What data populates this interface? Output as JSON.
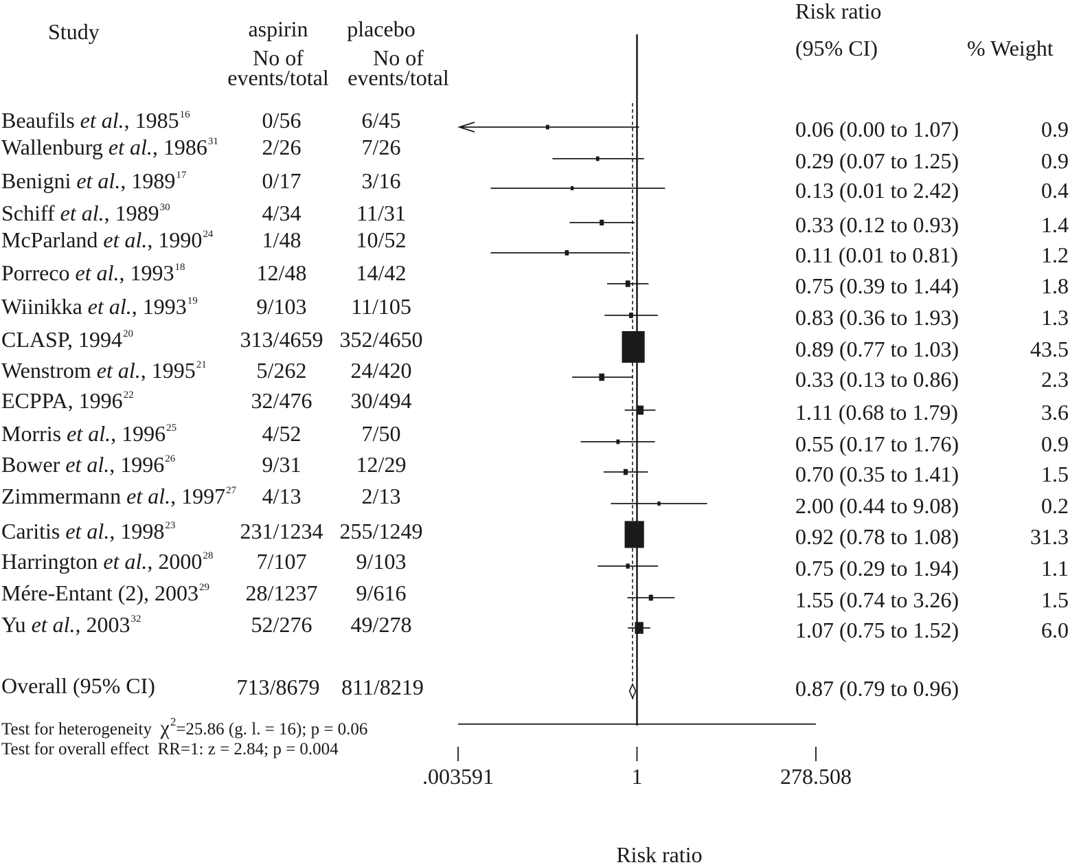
{
  "chart_data": {
    "type": "forest",
    "header": {
      "study": "Study",
      "aspirin": "aspirin",
      "placebo": "placebo",
      "no_of": "No of",
      "events_total": "events/total",
      "risk_ratio": "Risk ratio",
      "ci": "(95% CI)",
      "weight": "% Weight"
    },
    "studies": [
      {
        "name": "Beaufils",
        "etal": true,
        "year": "1985",
        "ref": "16",
        "aspirin": "0/56",
        "placebo": "6/45",
        "rr_text": "0.06 (0.00 to 1.07)",
        "weight_text": "0.9",
        "rr": 0.06,
        "lo": 0.0036,
        "hi": 1.07,
        "weight": 0.9,
        "arrow_left": true
      },
      {
        "name": "Wallenburg",
        "etal": true,
        "year": "1986",
        "ref": "31",
        "aspirin": "2/26",
        "placebo": "7/26",
        "rr_text": "0.29 (0.07 to 1.25)",
        "weight_text": "0.9",
        "rr": 0.29,
        "lo": 0.07,
        "hi": 1.25,
        "weight": 0.9
      },
      {
        "name": "Benigni",
        "etal": true,
        "year": "1989",
        "ref": "17",
        "aspirin": "0/17",
        "placebo": "3/16",
        "rr_text": "0.13 (0.01 to 2.42)",
        "weight_text": "0.4",
        "rr": 0.13,
        "lo": 0.01,
        "hi": 2.42,
        "weight": 0.4
      },
      {
        "name": "Schiff",
        "etal": true,
        "year": "1989",
        "ref": "30",
        "aspirin": "4/34",
        "placebo": "11/31",
        "rr_text": "0.33 (0.12 to 0.93)",
        "weight_text": "1.4",
        "rr": 0.33,
        "lo": 0.12,
        "hi": 0.93,
        "weight": 1.4
      },
      {
        "name": "McParland",
        "etal": true,
        "year": "1990",
        "ref": "24",
        "aspirin": "1/48",
        "placebo": "10/52",
        "rr_text": "0.11 (0.01 to 0.81)",
        "weight_text": "1.2",
        "rr": 0.11,
        "lo": 0.01,
        "hi": 0.81,
        "weight": 1.2
      },
      {
        "name": "Porreco",
        "etal": true,
        "year": "1993",
        "ref": "18",
        "aspirin": "12/48",
        "placebo": "14/42",
        "rr_text": "0.75 (0.39 to 1.44)",
        "weight_text": "1.8",
        "rr": 0.75,
        "lo": 0.39,
        "hi": 1.44,
        "weight": 1.8
      },
      {
        "name": "Wiinikka",
        "etal": true,
        "year": "1993",
        "ref": "19",
        "aspirin": "9/103",
        "placebo": "11/105",
        "rr_text": "0.83 (0.36 to 1.93)",
        "weight_text": "1.3",
        "rr": 0.83,
        "lo": 0.36,
        "hi": 1.93,
        "weight": 1.3
      },
      {
        "name": "CLASP",
        "etal": false,
        "year": "1994",
        "ref": "20",
        "aspirin": "313/4659",
        "placebo": "352/4650",
        "rr_text": "0.89 (0.77 to 1.03)",
        "weight_text": "43.5",
        "rr": 0.89,
        "lo": 0.77,
        "hi": 1.03,
        "weight": 43.5
      },
      {
        "name": "Wenstrom",
        "etal": true,
        "year": "1995",
        "ref": "21",
        "aspirin": "5/262",
        "placebo": "24/420",
        "rr_text": "0.33 (0.13 to 0.86)",
        "weight_text": "2.3",
        "rr": 0.33,
        "lo": 0.13,
        "hi": 0.86,
        "weight": 2.3
      },
      {
        "name": "ECPPA",
        "etal": false,
        "year": "1996",
        "ref": "22",
        "aspirin": "32/476",
        "placebo": "30/494",
        "rr_text": "1.11 (0.68 to 1.79)",
        "weight_text": "3.6",
        "rr": 1.11,
        "lo": 0.68,
        "hi": 1.79,
        "weight": 3.6
      },
      {
        "name": "Morris",
        "etal": true,
        "year": "1996",
        "ref": "25",
        "aspirin": "4/52",
        "placebo": "7/50",
        "rr_text": "0.55 (0.17 to 1.76)",
        "weight_text": "0.9",
        "rr": 0.55,
        "lo": 0.17,
        "hi": 1.76,
        "weight": 0.9
      },
      {
        "name": "Bower",
        "etal": true,
        "year": "1996",
        "ref": "26",
        "aspirin": "9/31",
        "placebo": "12/29",
        "rr_text": "0.70 (0.35 to 1.41)",
        "weight_text": "1.5",
        "rr": 0.7,
        "lo": 0.35,
        "hi": 1.41,
        "weight": 1.5
      },
      {
        "name": "Zimmermann",
        "etal": true,
        "year": "1997",
        "ref": "27",
        "aspirin": "4/13",
        "placebo": "2/13",
        "rr_text": "2.00 (0.44 to 9.08)",
        "weight_text": "0.2",
        "rr": 2.0,
        "lo": 0.44,
        "hi": 9.08,
        "weight": 0.2
      },
      {
        "name": "Caritis",
        "etal": true,
        "year": "1998",
        "ref": "23",
        "aspirin": "231/1234",
        "placebo": "255/1249",
        "rr_text": "0.92 (0.78 to 1.08)",
        "weight_text": "31.3",
        "rr": 0.92,
        "lo": 0.78,
        "hi": 1.08,
        "weight": 31.3
      },
      {
        "name": "Harrington",
        "etal": true,
        "year": "2000",
        "ref": "28",
        "aspirin": "7/107",
        "placebo": "9/103",
        "rr_text": "0.75 (0.29 to 1.94)",
        "weight_text": "1.1",
        "rr": 0.75,
        "lo": 0.29,
        "hi": 1.94,
        "weight": 1.1
      },
      {
        "name": "Mére-Entant (2)",
        "etal": false,
        "year": "2003",
        "ref": "29",
        "aspirin": "28/1237",
        "placebo": "9/616",
        "rr_text": "1.55 (0.74 to 3.26)",
        "weight_text": "1.5",
        "rr": 1.55,
        "lo": 0.74,
        "hi": 3.26,
        "weight": 1.5
      },
      {
        "name": "Yu",
        "etal": true,
        "year": "2003",
        "ref": "32",
        "aspirin": "52/276",
        "placebo": "49/278",
        "rr_text": "1.07 (0.75 to 1.52)",
        "weight_text": "6.0",
        "rr": 1.07,
        "lo": 0.75,
        "hi": 1.52,
        "weight": 6.0
      }
    ],
    "overall": {
      "label": "Overall (95% CI)",
      "aspirin": "713/8679",
      "placebo": "811/8219",
      "rr_text": "0.87 (0.79 to 0.96)",
      "rr": 0.87,
      "lo": 0.79,
      "hi": 0.96
    },
    "tests": {
      "heterogeneity_label": "Test for heterogeneity",
      "heterogeneity_chi": "χ",
      "heterogeneity_sup": "2",
      "heterogeneity_value": "=25.86 (g. l. = 16); p = 0.06",
      "overall_label": "Test for overall effect",
      "overall_value": "RR=1: z = 2.84; p = 0.004"
    },
    "axis": {
      "scale": "log",
      "min": 0.003591,
      "max": 278.508,
      "reference": 1,
      "ticks": [
        {
          "value": 0.003591,
          "label": ".003591"
        },
        {
          "value": 1,
          "label": "1"
        },
        {
          "value": 278.508,
          "label": "278.508"
        }
      ],
      "xlabel": "Risk ratio"
    }
  }
}
